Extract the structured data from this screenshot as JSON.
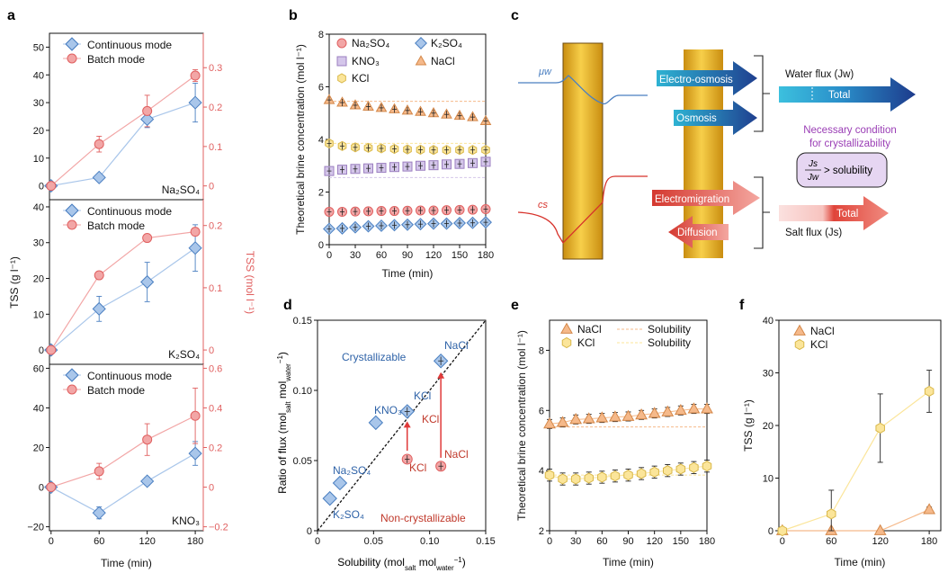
{
  "colors": {
    "blue": "#4a7fc1",
    "blue_fill": "#a9c6ea",
    "red": "#e06060",
    "red_fill": "#f2a6a6",
    "orange": "#d4884a",
    "orange_fill": "#f5b98a",
    "yellow": "#d9b84a",
    "yellow_fill": "#fbe59a",
    "purple": "#9b7fc0",
    "purple_fill": "#d4c6ea",
    "gold": "#e2a826"
  },
  "panels": {
    "a": "a",
    "b": "b",
    "c": "c",
    "d": "d",
    "e": "e",
    "f": "f"
  },
  "chart_data": [
    {
      "id": "a",
      "type": "line",
      "title": "",
      "xlabel": "Time (min)",
      "ylabel_left": "TSS (g l⁻¹)",
      "ylabel_right": "TSS (mol l⁻¹)",
      "x": [
        0,
        60,
        120,
        180
      ],
      "subplots": [
        {
          "name": "Na₂SO₄",
          "ylim_left": [
            -5,
            55
          ],
          "yticks_left": [
            0,
            10,
            20,
            30,
            40,
            50
          ],
          "ylim_right": [
            -0.035,
            0.3873
          ],
          "yticks_right": [
            0,
            0.1,
            0.2,
            0.3
          ],
          "yticklabels_right": [
            "0",
            "0.1",
            "0.2",
            "0.3"
          ],
          "series": [
            {
              "name": "Continuous mode",
              "axis": "left",
              "values": [
                0,
                3,
                24,
                30
              ],
              "err": [
                0,
                0.5,
                3,
                7
              ]
            },
            {
              "name": "Batch mode",
              "axis": "right",
              "values": [
                0,
                0.106,
                0.19,
                0.28
              ],
              "err": [
                0,
                0.02,
                0.04,
                0.015
              ]
            }
          ]
        },
        {
          "name": "K₂SO₄",
          "ylim_left": [
            -4,
            42
          ],
          "yticks_left": [
            0,
            10,
            20,
            30,
            40
          ],
          "ylim_right": [
            -0.023,
            0.2415
          ],
          "yticks_right": [
            0,
            0.1,
            0.2
          ],
          "yticklabels_right": [
            "0",
            "0.1",
            "0.2"
          ],
          "series": [
            {
              "name": "Continuous mode",
              "axis": "left",
              "values": [
                0,
                11.5,
                19,
                28.5
              ],
              "err": [
                0,
                3.5,
                5.5,
                6.5
              ]
            },
            {
              "name": "Batch mode",
              "axis": "right",
              "values": [
                0,
                0.12,
                0.18,
                0.19
              ],
              "err": [
                0,
                0,
                0,
                0
              ]
            }
          ]
        },
        {
          "name": "KNO₃",
          "ylim_left": [
            -22,
            62
          ],
          "yticks_left": [
            -20,
            0,
            20,
            40,
            60
          ],
          "ylim_right": [
            -0.22,
            0.62
          ],
          "yticks_right": [
            -0.2,
            0,
            0.2,
            0.4,
            0.6
          ],
          "yticklabels_right": [
            "−0.2",
            "0",
            "0.2",
            "0.4",
            "0.6"
          ],
          "series": [
            {
              "name": "Continuous mode",
              "axis": "left",
              "values": [
                0,
                -13,
                3,
                17
              ],
              "err": [
                0,
                3,
                2,
                6
              ]
            },
            {
              "name": "Batch mode",
              "axis": "right",
              "values": [
                0,
                0.08,
                0.24,
                0.36
              ],
              "err": [
                0,
                0.04,
                0.08,
                0.14
              ]
            }
          ]
        }
      ],
      "xticks": [
        0,
        60,
        120,
        180
      ]
    },
    {
      "id": "b",
      "type": "scatter",
      "xlabel": "Time (min)",
      "ylabel": "Theoretical brine concentration (mol l⁻¹)",
      "xlim": [
        0,
        180
      ],
      "ylim": [
        0,
        8
      ],
      "xticks": [
        0,
        30,
        60,
        90,
        120,
        150,
        180
      ],
      "yticks": [
        0,
        2,
        4,
        6,
        8
      ],
      "x": [
        0,
        15,
        30,
        45,
        60,
        75,
        90,
        105,
        120,
        135,
        150,
        165,
        180
      ],
      "series": [
        {
          "name": "NaCl",
          "marker": "triangle",
          "values": [
            5.5,
            5.4,
            5.3,
            5.25,
            5.2,
            5.15,
            5.1,
            5.05,
            5.0,
            4.95,
            4.9,
            4.85,
            4.7
          ],
          "solubility": 5.45
        },
        {
          "name": "KCl",
          "marker": "hexagon",
          "values": [
            3.85,
            3.75,
            3.7,
            3.68,
            3.66,
            3.64,
            3.62,
            3.61,
            3.6,
            3.6,
            3.6,
            3.6,
            3.6
          ],
          "solubility": 3.85
        },
        {
          "name": "KNO₃",
          "marker": "square",
          "values": [
            2.8,
            2.85,
            2.88,
            2.9,
            2.92,
            2.95,
            2.97,
            3.0,
            3.02,
            3.05,
            3.07,
            3.1,
            3.15
          ],
          "solubility": 2.55
        },
        {
          "name": "Na₂SO₄",
          "marker": "circle",
          "values": [
            1.25,
            1.25,
            1.26,
            1.27,
            1.28,
            1.28,
            1.29,
            1.3,
            1.3,
            1.31,
            1.32,
            1.33,
            1.35
          ],
          "solubility": null
        },
        {
          "name": "K₂SO₄",
          "marker": "diamond",
          "values": [
            0.6,
            0.62,
            0.66,
            0.7,
            0.72,
            0.74,
            0.76,
            0.78,
            0.8,
            0.8,
            0.82,
            0.83,
            0.85
          ],
          "solubility": null
        }
      ]
    },
    {
      "id": "d",
      "type": "scatter",
      "xlabel": "Solubility (molₛₐₗₜ molᵂₐₜₑᵣ⁻¹)",
      "xlabel_parts": [
        "Solubility (mol",
        "salt",
        " mol",
        "water",
        "−1",
        ")"
      ],
      "ylabel_parts": [
        "Ratio of flux (mol",
        "salt",
        " mol",
        "water",
        "−1",
        ")"
      ],
      "xlim": [
        0,
        0.15
      ],
      "ylim": [
        0,
        0.15
      ],
      "xticks": [
        0,
        0.05,
        0.1,
        0.15
      ],
      "yticks": [
        0,
        0.05,
        0.1,
        0.15
      ],
      "xticklabels": [
        "0",
        "0.05",
        "0.10",
        "0.15"
      ],
      "yticklabels": [
        "0",
        "0.05",
        "0.10",
        "0.15"
      ],
      "region_labels": {
        "upper": "Crystallizable",
        "lower": "Non-crystallizable"
      },
      "continuous": [
        {
          "name": "NaCl",
          "x": 0.11,
          "y": 0.121
        },
        {
          "name": "KCl",
          "x": 0.08,
          "y": 0.085
        },
        {
          "name": "KNO₃",
          "x": 0.052,
          "y": 0.077
        },
        {
          "name": "Na₂SO₄",
          "x": 0.02,
          "y": 0.034
        },
        {
          "name": "K₂SO₄",
          "x": 0.011,
          "y": 0.023
        }
      ],
      "batch": [
        {
          "name": "KCl",
          "x": 0.08,
          "y": 0.051
        },
        {
          "name": "NaCl",
          "x": 0.11,
          "y": 0.046
        }
      ],
      "batch_labels_middle": {
        "KCl": "KCl"
      }
    },
    {
      "id": "e",
      "type": "scatter",
      "xlabel": "Time (min)",
      "ylabel": "Theoretical brine concentration (mol l⁻¹)",
      "xlim": [
        0,
        180
      ],
      "ylim": [
        2,
        9
      ],
      "xticks": [
        0,
        30,
        60,
        90,
        120,
        150,
        180
      ],
      "yticks": [
        2,
        4,
        6,
        8
      ],
      "x": [
        0,
        15,
        30,
        45,
        60,
        75,
        90,
        105,
        120,
        135,
        150,
        165,
        180
      ],
      "series": [
        {
          "name": "NaCl",
          "marker": "triangle",
          "values": [
            5.55,
            5.6,
            5.7,
            5.72,
            5.75,
            5.78,
            5.8,
            5.85,
            5.9,
            5.95,
            6.0,
            6.05,
            6.05
          ],
          "err": 0.15
        },
        {
          "name": "KCl",
          "marker": "hexagon",
          "values": [
            3.85,
            3.72,
            3.72,
            3.75,
            3.78,
            3.82,
            3.85,
            3.9,
            3.95,
            4.0,
            4.05,
            4.1,
            4.15
          ],
          "err": 0.2
        }
      ],
      "solubility": [
        {
          "name": "Solubility",
          "value": 5.45,
          "color": "orange"
        },
        {
          "name": "Solubility",
          "value": 3.85,
          "color": "yellow"
        }
      ]
    },
    {
      "id": "f",
      "type": "line",
      "xlabel": "Time (min)",
      "ylabel": "TSS (g l⁻¹)",
      "xlim": [
        0,
        180
      ],
      "ylim": [
        0,
        40
      ],
      "xticks": [
        0,
        60,
        120,
        180
      ],
      "yticks": [
        0,
        10,
        20,
        30,
        40
      ],
      "x": [
        0,
        60,
        120,
        180
      ],
      "series": [
        {
          "name": "NaCl",
          "marker": "triangle",
          "values": [
            0,
            0,
            0,
            4
          ],
          "err": [
            0,
            0,
            0,
            0.5
          ]
        },
        {
          "name": "KCl",
          "marker": "hexagon",
          "values": [
            0,
            3.2,
            19.5,
            26.5
          ],
          "err": [
            0,
            4.5,
            6.5,
            4
          ]
        }
      ]
    }
  ],
  "diagram_c": {
    "mu_w": "μw",
    "c_s": "cs",
    "arrows": {
      "electro_osmosis": "Electro-osmosis",
      "osmosis": "Osmosis",
      "electromigration": "Electromigration",
      "diffusion": "Diffusion"
    },
    "water_flux": "Water flux (Jw)",
    "salt_flux": "Salt flux (Js)",
    "total": "Total",
    "condition_title": "Necessary condition",
    "condition_sub": "for crystallizability",
    "condition_formula": "> solubility",
    "js": "Js",
    "jw": "Jw"
  }
}
